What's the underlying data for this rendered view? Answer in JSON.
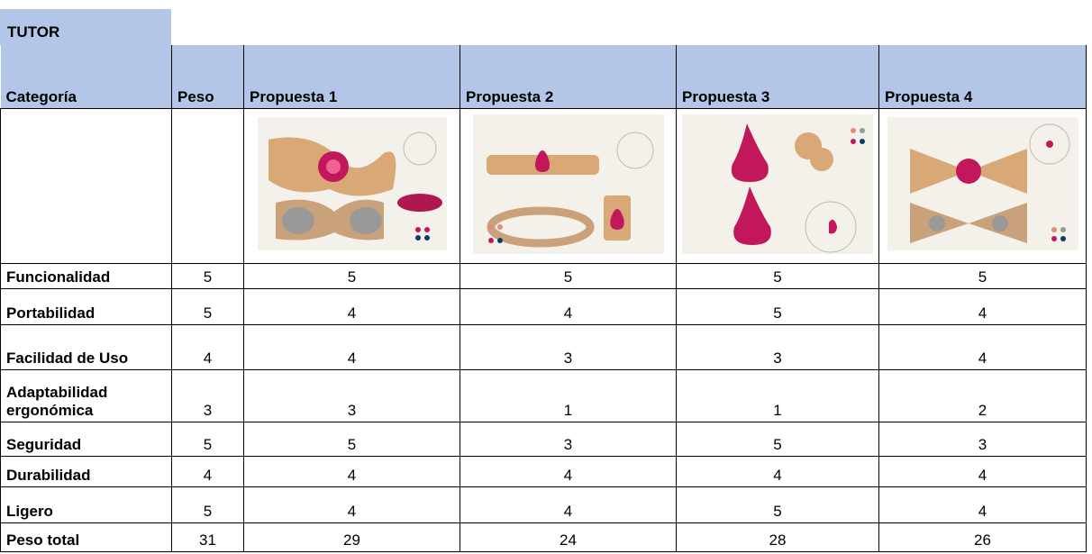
{
  "table": {
    "title": "TUTOR",
    "header": [
      "Categoría",
      "Peso",
      "Propuesta 1",
      "Propuesta 2",
      "Propuesta 3",
      "Propuesta 4"
    ],
    "rows": [
      [
        "Funcionalidad",
        5,
        5,
        5,
        5,
        5
      ],
      [
        "Portabilidad",
        5,
        4,
        4,
        5,
        4
      ],
      [
        "Facilidad de Uso",
        4,
        4,
        3,
        3,
        4
      ],
      [
        "Adaptabilidad ergonómica",
        3,
        3,
        1,
        1,
        2
      ],
      [
        "Seguridad",
        5,
        5,
        3,
        5,
        3
      ],
      [
        "Durabilidad",
        4,
        4,
        4,
        4,
        4
      ],
      [
        "Ligero",
        5,
        4,
        4,
        5,
        4
      ],
      [
        "Peso total",
        31,
        29,
        24,
        28,
        26
      ]
    ]
  }
}
